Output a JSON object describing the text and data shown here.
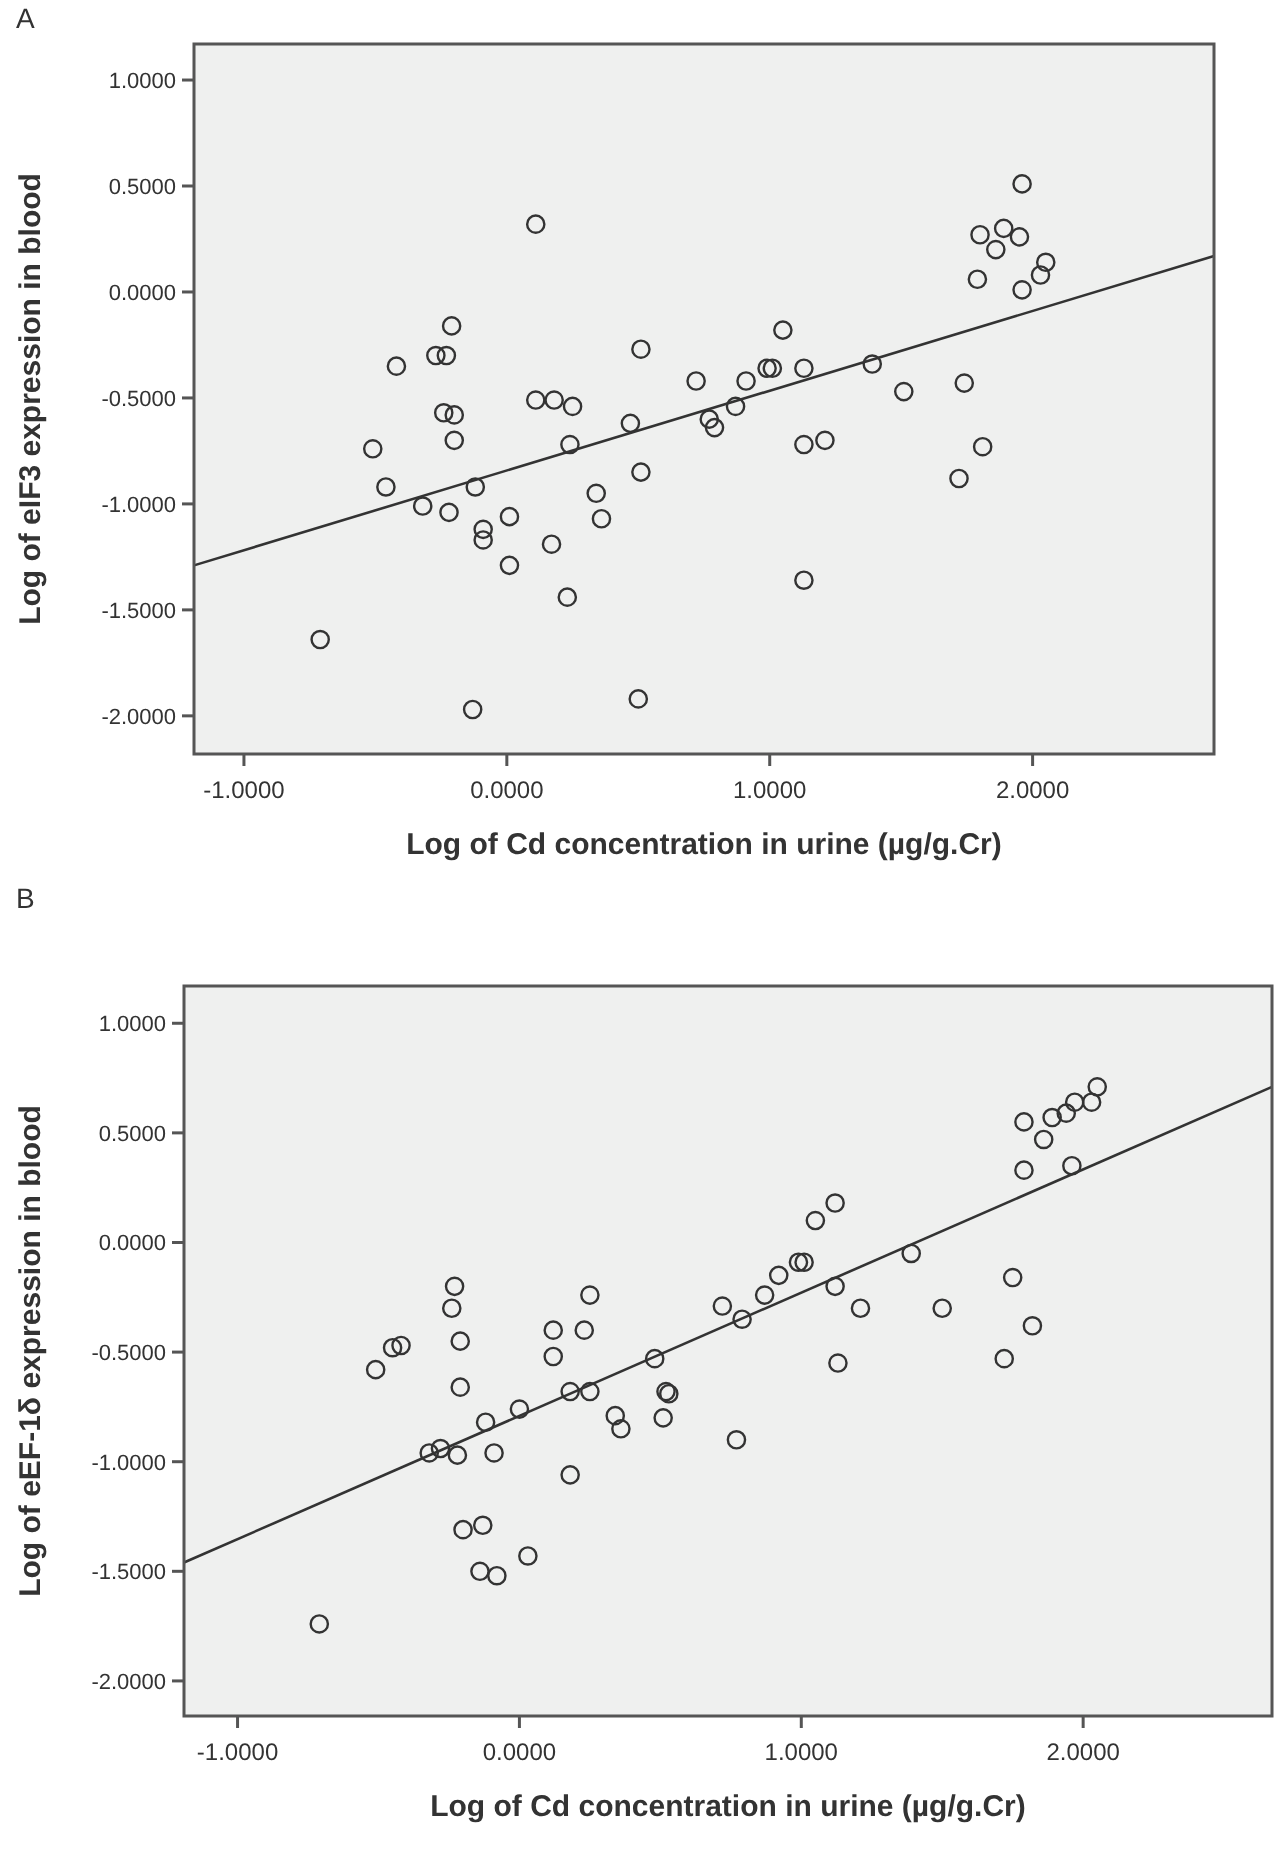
{
  "chart_data": [
    {
      "type": "scatter",
      "title": "A",
      "xlabel": "Log of Cd concentration in urine (µg/g.Cr)",
      "ylabel": "Log of eIF3 expression in blood",
      "xlim": [
        -1.19,
        2.69
      ],
      "ylim": [
        -2.18,
        1.17
      ],
      "xticks": [
        {
          "value": -1,
          "label": "-1.0000"
        },
        {
          "value": 0,
          "label": "0.0000"
        },
        {
          "value": 1,
          "label": "1.0000"
        },
        {
          "value": 2,
          "label": "2.0000"
        }
      ],
      "yticks": [
        {
          "value": -2,
          "label": "-2.0000"
        },
        {
          "value": -1.5,
          "label": "-1.5000"
        },
        {
          "value": -1,
          "label": "-1.0000"
        },
        {
          "value": -0.5,
          "label": "-0.5000"
        },
        {
          "value": 0,
          "label": "0.0000"
        },
        {
          "value": 0.5,
          "label": "0.5000"
        },
        {
          "value": 1,
          "label": "1.0000"
        }
      ],
      "grid": false,
      "marker": "circle",
      "series": [
        {
          "color": "#333333",
          "x": [
            -0.71,
            -0.51,
            -0.46,
            -0.42,
            -0.32,
            -0.27,
            -0.23,
            -0.21,
            -0.24,
            -0.2,
            -0.2,
            -0.22,
            -0.12,
            -0.09,
            -0.09,
            -0.13,
            0.01,
            0.01,
            0.11,
            0.11,
            0.18,
            0.25,
            0.24,
            0.17,
            0.23,
            0.36,
            0.34,
            0.47,
            0.51,
            0.51,
            0.5,
            0.72,
            0.77,
            0.79,
            0.87,
            0.91,
            0.99,
            1.01,
            1.05,
            1.13,
            1.13,
            1.21,
            1.13,
            1.39,
            1.51,
            1.74,
            1.72,
            1.81,
            1.79,
            1.8,
            1.86,
            1.89,
            1.95,
            1.96,
            1.96,
            2.03,
            2.05
          ],
          "values": [
            -1.64,
            -0.74,
            -0.92,
            -0.35,
            -1.01,
            -0.3,
            -0.3,
            -0.16,
            -0.57,
            -0.58,
            -0.7,
            -1.04,
            -0.92,
            -1.12,
            -1.17,
            -1.97,
            -1.06,
            -1.29,
            0.32,
            -0.51,
            -0.51,
            -0.54,
            -0.72,
            -1.19,
            -1.44,
            -1.07,
            -0.95,
            -0.62,
            -0.27,
            -0.85,
            -1.92,
            -0.42,
            -0.6,
            -0.64,
            -0.54,
            -0.42,
            -0.36,
            -0.36,
            -0.18,
            -0.36,
            -0.72,
            -0.7,
            -1.36,
            -0.34,
            -0.47,
            -0.43,
            -0.88,
            -0.73,
            0.06,
            0.27,
            0.2,
            0.3,
            0.26,
            0.51,
            0.01,
            0.08,
            0.14
          ]
        },
        {
          "type": "line",
          "color": "#333333",
          "marker": "none",
          "x": [
            -1.19,
            2.69
          ],
          "values": [
            -1.29,
            0.17
          ]
        }
      ]
    },
    {
      "type": "scatter",
      "title": "B",
      "xlabel": "Log of Cd concentration in urine (µg/g.Cr)",
      "ylabel": "Log of eEF-1δ expression in blood",
      "xlim": [
        -1.19,
        2.67
      ],
      "ylim": [
        -2.16,
        1.17
      ],
      "xticks": [
        {
          "value": -1,
          "label": "-1.0000"
        },
        {
          "value": 0,
          "label": "0.0000"
        },
        {
          "value": 1,
          "label": "1.0000"
        },
        {
          "value": 2,
          "label": "2.0000"
        }
      ],
      "yticks": [
        {
          "value": -2,
          "label": "-2.0000"
        },
        {
          "value": -1.5,
          "label": "-1.5000"
        },
        {
          "value": -1,
          "label": "-1.0000"
        },
        {
          "value": -0.5,
          "label": "-0.5000"
        },
        {
          "value": 0,
          "label": "0.0000"
        },
        {
          "value": 0.5,
          "label": "0.5000"
        },
        {
          "value": 1,
          "label": "1.0000"
        }
      ],
      "grid": false,
      "marker": "circle",
      "series": [
        {
          "color": "#333333",
          "x": [
            -0.71,
            -0.51,
            -0.45,
            -0.42,
            -0.32,
            -0.28,
            -0.23,
            -0.24,
            -0.21,
            -0.21,
            -0.22,
            -0.2,
            -0.13,
            -0.14,
            -0.08,
            -0.12,
            -0.09,
            0.0,
            0.03,
            0.12,
            0.12,
            0.18,
            0.18,
            0.23,
            0.25,
            0.25,
            0.34,
            0.36,
            0.48,
            0.52,
            0.53,
            0.51,
            0.72,
            0.77,
            0.79,
            0.87,
            0.92,
            0.99,
            1.01,
            1.05,
            1.12,
            1.12,
            1.21,
            1.13,
            1.39,
            1.5,
            1.75,
            1.72,
            1.82,
            1.79,
            1.79,
            1.86,
            1.89,
            1.94,
            1.97,
            1.96,
            2.03,
            2.05
          ],
          "values": [
            -1.74,
            -0.58,
            -0.48,
            -0.47,
            -0.96,
            -0.94,
            -0.2,
            -0.3,
            -0.45,
            -0.66,
            -0.97,
            -1.31,
            -1.29,
            -1.5,
            -1.52,
            -0.82,
            -0.96,
            -0.76,
            -1.43,
            -0.4,
            -0.52,
            -0.68,
            -1.06,
            -0.4,
            -0.24,
            -0.68,
            -0.79,
            -0.85,
            -0.53,
            -0.68,
            -0.69,
            -0.8,
            -0.29,
            -0.9,
            -0.35,
            -0.24,
            -0.15,
            -0.09,
            -0.09,
            0.1,
            0.18,
            -0.2,
            -0.3,
            -0.55,
            -0.05,
            -0.3,
            -0.16,
            -0.53,
            -0.38,
            0.33,
            0.55,
            0.47,
            0.57,
            0.59,
            0.64,
            0.35,
            0.64,
            0.71
          ]
        },
        {
          "type": "line",
          "color": "#333333",
          "marker": "none",
          "x": [
            -1.19,
            2.67
          ],
          "values": [
            -1.46,
            0.71
          ]
        }
      ]
    }
  ]
}
